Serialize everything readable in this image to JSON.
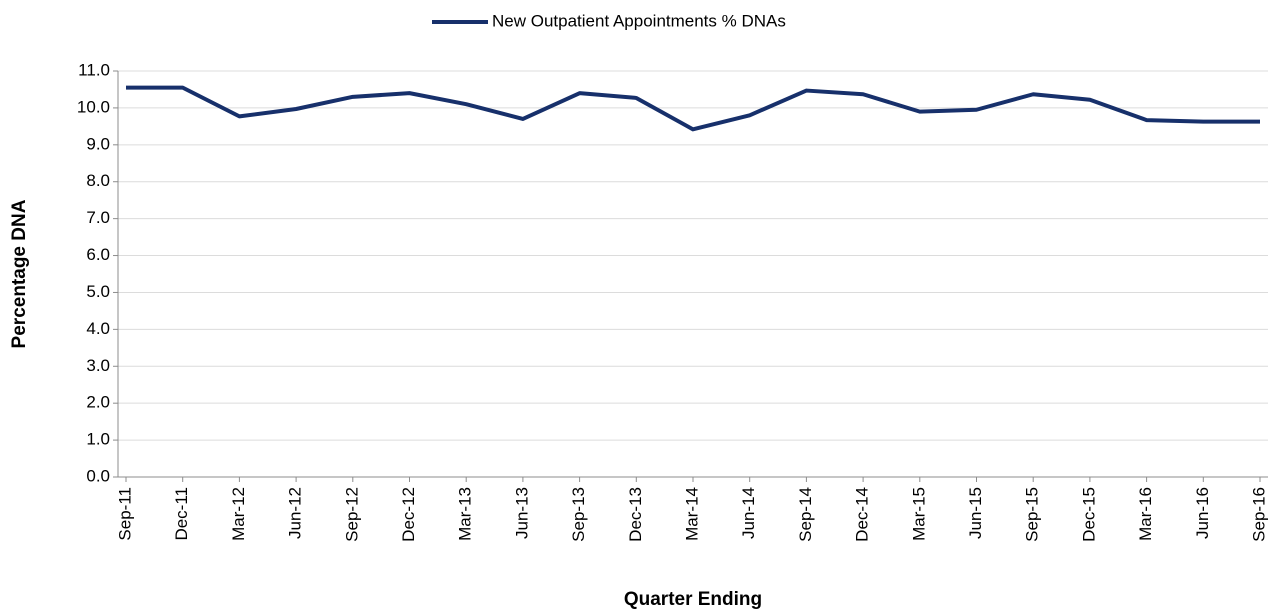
{
  "chart_data": {
    "type": "line",
    "x_label": "Quarter Ending",
    "y_label": "Percentage DNA",
    "categories": [
      "Sep-11",
      "Dec-11",
      "Mar-12",
      "Jun-12",
      "Sep-12",
      "Dec-12",
      "Mar-13",
      "Jun-13",
      "Sep-13",
      "Dec-13",
      "Mar-14",
      "Jun-14",
      "Sep-14",
      "Dec-14",
      "Mar-15",
      "Jun-15",
      "Sep-15",
      "Dec-15",
      "Mar-16",
      "Jun-16",
      "Sep-16"
    ],
    "series": [
      {
        "name": "New Outpatient Appointments % DNAs",
        "color": "#17306b",
        "values": [
          10.55,
          10.55,
          9.77,
          9.97,
          10.3,
          10.4,
          10.1,
          9.7,
          10.4,
          10.27,
          9.42,
          9.8,
          10.47,
          10.37,
          9.9,
          9.95,
          10.37,
          10.22,
          9.67,
          9.63,
          9.63
        ]
      }
    ],
    "ylim": [
      0,
      11
    ],
    "yticks": [
      {
        "value": 0,
        "label": "0.0"
      },
      {
        "value": 1,
        "label": "1.0"
      },
      {
        "value": 2,
        "label": "2.0"
      },
      {
        "value": 3,
        "label": "3.0"
      },
      {
        "value": 4,
        "label": "4.0"
      },
      {
        "value": 5,
        "label": "5.0"
      },
      {
        "value": 6,
        "label": "6.0"
      },
      {
        "value": 7,
        "label": "7.0"
      },
      {
        "value": 8,
        "label": "8.0"
      },
      {
        "value": 9,
        "label": "9.0"
      },
      {
        "value": 10,
        "label": "10.0"
      },
      {
        "value": 11,
        "label": "11.0"
      }
    ],
    "grid": true,
    "legend": "top"
  }
}
